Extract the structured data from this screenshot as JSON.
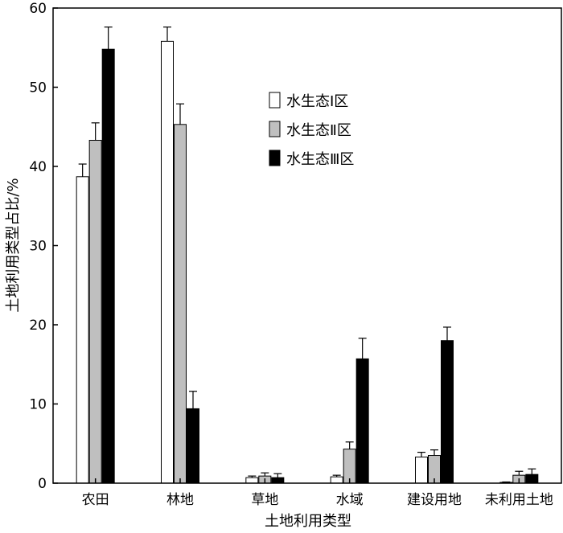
{
  "chart_data": {
    "type": "bar",
    "xlabel": "土地利用类型",
    "ylabel": "土地利用类型占比/%",
    "ylim": [
      0,
      60
    ],
    "yticks": [
      0,
      10,
      20,
      30,
      40,
      50,
      60
    ],
    "categories": [
      "农田",
      "林地",
      "草地",
      "水域",
      "建设用地",
      "未利用土地"
    ],
    "series": [
      {
        "name": "水生态Ⅰ区",
        "color": "#ffffff",
        "values": [
          38.7,
          55.8,
          0.7,
          0.8,
          3.3,
          0.1
        ],
        "errors": [
          1.6,
          1.8,
          0.2,
          0.2,
          0.6,
          0.05
        ]
      },
      {
        "name": "水生态Ⅱ区",
        "color": "#bfbfbf",
        "values": [
          43.3,
          45.3,
          0.9,
          4.3,
          3.5,
          1.0
        ],
        "errors": [
          2.2,
          2.6,
          0.4,
          0.9,
          0.7,
          0.5
        ]
      },
      {
        "name": "水生态Ⅲ区",
        "color": "#000000",
        "values": [
          54.8,
          9.4,
          0.7,
          15.7,
          18.0,
          1.1
        ],
        "errors": [
          2.8,
          2.2,
          0.5,
          2.6,
          1.7,
          0.7
        ]
      }
    ],
    "legend_position": "upper-center",
    "grid": false
  }
}
